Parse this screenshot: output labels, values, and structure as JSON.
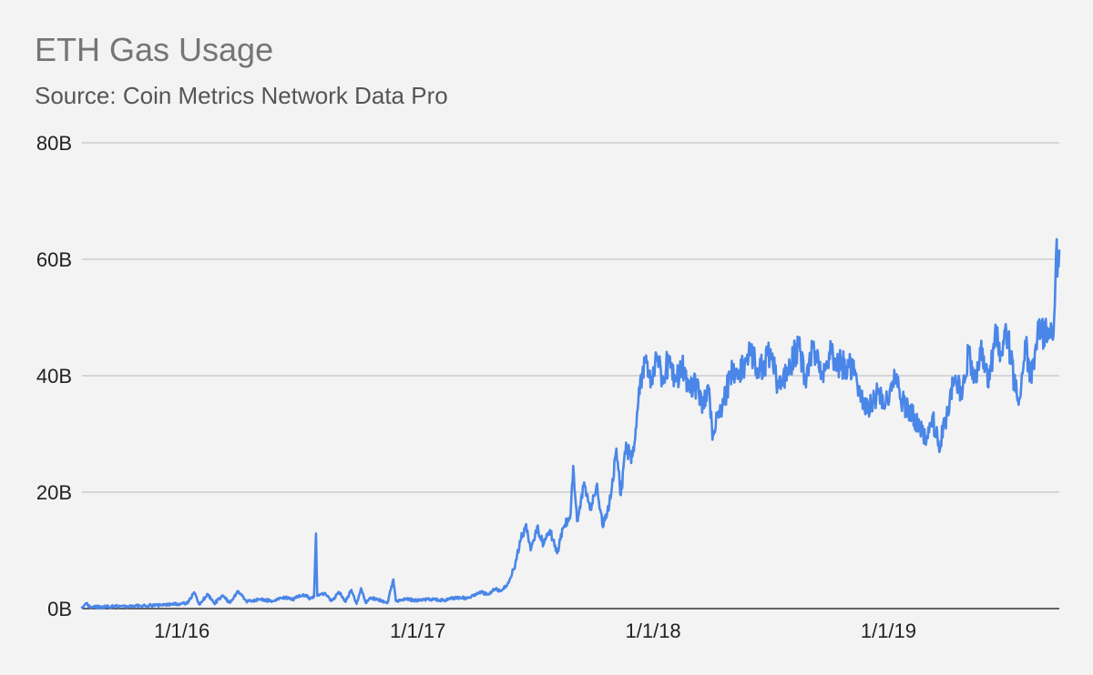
{
  "chart_data": {
    "type": "line",
    "title": "ETH Gas Usage",
    "subtitle": "Source: Coin Metrics Network Data Pro",
    "xlabel": "",
    "ylabel": "",
    "x_range": [
      "2015-07-30",
      "2019-09-23"
    ],
    "ylim": [
      0,
      80
    ],
    "y_unit": "billions of gas",
    "y_ticks": [
      {
        "value": 0,
        "label": "0B"
      },
      {
        "value": 20,
        "label": "20B"
      },
      {
        "value": 40,
        "label": "40B"
      },
      {
        "value": 60,
        "label": "60B"
      },
      {
        "value": 80,
        "label": "80B"
      }
    ],
    "x_ticks": [
      {
        "value": "2016-01-01",
        "label": "1/1/16"
      },
      {
        "value": "2017-01-01",
        "label": "1/1/17"
      },
      {
        "value": "2018-01-01",
        "label": "1/1/18"
      },
      {
        "value": "2019-01-01",
        "label": "1/1/19"
      }
    ],
    "grid": true,
    "legend": "none",
    "series": [
      {
        "color": "#4a86e8",
        "points": [
          [
            "2015-07-30",
            0.2
          ],
          [
            "2015-08-05",
            0.9
          ],
          [
            "2015-08-12",
            0.3
          ],
          [
            "2015-09-01",
            0.3
          ],
          [
            "2015-10-01",
            0.4
          ],
          [
            "2015-11-01",
            0.5
          ],
          [
            "2015-12-01",
            0.6
          ],
          [
            "2015-12-20",
            0.8
          ],
          [
            "2016-01-10",
            0.9
          ],
          [
            "2016-01-20",
            2.8
          ],
          [
            "2016-01-28",
            0.7
          ],
          [
            "2016-02-10",
            2.5
          ],
          [
            "2016-02-20",
            0.9
          ],
          [
            "2016-03-05",
            2.2
          ],
          [
            "2016-03-15",
            1.0
          ],
          [
            "2016-03-28",
            3.0
          ],
          [
            "2016-04-10",
            1.2
          ],
          [
            "2016-05-01",
            1.6
          ],
          [
            "2016-05-20",
            1.3
          ],
          [
            "2016-06-10",
            1.9
          ],
          [
            "2016-06-20",
            1.5
          ],
          [
            "2016-06-28",
            2.0
          ],
          [
            "2016-07-10",
            2.3
          ],
          [
            "2016-07-18",
            1.7
          ],
          [
            "2016-07-24",
            2.0
          ],
          [
            "2016-07-27",
            12.9
          ],
          [
            "2016-07-29",
            2.2
          ],
          [
            "2016-08-10",
            2.7
          ],
          [
            "2016-08-20",
            1.3
          ],
          [
            "2016-09-01",
            2.8
          ],
          [
            "2016-09-10",
            1.2
          ],
          [
            "2016-09-20",
            3.2
          ],
          [
            "2016-09-28",
            0.8
          ],
          [
            "2016-10-05",
            3.5
          ],
          [
            "2016-10-12",
            1.0
          ],
          [
            "2016-10-20",
            1.9
          ],
          [
            "2016-11-01",
            1.5
          ],
          [
            "2016-11-15",
            1.0
          ],
          [
            "2016-11-24",
            5.0
          ],
          [
            "2016-11-28",
            1.3
          ],
          [
            "2016-12-15",
            1.6
          ],
          [
            "2017-01-01",
            1.4
          ],
          [
            "2017-01-20",
            1.6
          ],
          [
            "2017-02-10",
            1.4
          ],
          [
            "2017-03-01",
            1.9
          ],
          [
            "2017-03-20",
            1.8
          ],
          [
            "2017-04-10",
            2.8
          ],
          [
            "2017-04-20",
            2.4
          ],
          [
            "2017-05-01",
            3.4
          ],
          [
            "2017-05-10",
            3.0
          ],
          [
            "2017-05-20",
            4.2
          ],
          [
            "2017-06-01",
            7.5
          ],
          [
            "2017-06-10",
            12.0
          ],
          [
            "2017-06-18",
            14.5
          ],
          [
            "2017-06-25",
            10.0
          ],
          [
            "2017-07-05",
            14.0
          ],
          [
            "2017-07-15",
            11.0
          ],
          [
            "2017-07-25",
            13.5
          ],
          [
            "2017-08-05",
            9.5
          ],
          [
            "2017-08-15",
            14.0
          ],
          [
            "2017-08-25",
            15.5
          ],
          [
            "2017-08-30",
            24.5
          ],
          [
            "2017-09-05",
            15.0
          ],
          [
            "2017-09-15",
            21.0
          ],
          [
            "2017-09-25",
            17.0
          ],
          [
            "2017-10-05",
            21.0
          ],
          [
            "2017-10-15",
            14.0
          ],
          [
            "2017-10-25",
            18.0
          ],
          [
            "2017-11-05",
            27.5
          ],
          [
            "2017-11-12",
            19.5
          ],
          [
            "2017-11-20",
            28.5
          ],
          [
            "2017-11-28",
            25.0
          ],
          [
            "2017-12-05",
            31.0
          ],
          [
            "2017-12-10",
            38.0
          ],
          [
            "2017-12-20",
            43.0
          ],
          [
            "2017-12-28",
            38.0
          ],
          [
            "2018-01-05",
            44.0
          ],
          [
            "2018-01-15",
            40.0
          ],
          [
            "2018-01-25",
            42.5
          ],
          [
            "2018-02-05",
            39.0
          ],
          [
            "2018-02-15",
            41.5
          ],
          [
            "2018-02-25",
            37.5
          ],
          [
            "2018-03-10",
            38.5
          ],
          [
            "2018-03-20",
            35.0
          ],
          [
            "2018-03-28",
            38.0
          ],
          [
            "2018-04-03",
            29.0
          ],
          [
            "2018-04-10",
            33.0
          ],
          [
            "2018-04-20",
            35.0
          ],
          [
            "2018-05-01",
            40.5
          ],
          [
            "2018-05-15",
            41.0
          ],
          [
            "2018-06-01",
            43.5
          ],
          [
            "2018-06-15",
            41.0
          ],
          [
            "2018-07-01",
            43.5
          ],
          [
            "2018-07-15",
            38.0
          ],
          [
            "2018-08-01",
            42.0
          ],
          [
            "2018-08-15",
            45.0
          ],
          [
            "2018-08-25",
            39.0
          ],
          [
            "2018-09-05",
            45.0
          ],
          [
            "2018-09-20",
            40.0
          ],
          [
            "2018-10-01",
            44.0
          ],
          [
            "2018-10-15",
            42.0
          ],
          [
            "2018-11-01",
            41.5
          ],
          [
            "2018-11-10",
            41.0
          ],
          [
            "2018-11-20",
            36.0
          ],
          [
            "2018-12-01",
            34.0
          ],
          [
            "2018-12-15",
            37.0
          ],
          [
            "2019-01-01",
            35.0
          ],
          [
            "2019-01-10",
            41.0
          ],
          [
            "2019-01-20",
            36.0
          ],
          [
            "2019-02-01",
            34.0
          ],
          [
            "2019-02-15",
            32.0
          ],
          [
            "2019-03-01",
            29.0
          ],
          [
            "2019-03-10",
            33.0
          ],
          [
            "2019-03-20",
            28.0
          ],
          [
            "2019-04-01",
            33.0
          ],
          [
            "2019-04-15",
            40.0
          ],
          [
            "2019-04-25",
            36.0
          ],
          [
            "2019-05-05",
            44.0
          ],
          [
            "2019-05-15",
            39.0
          ],
          [
            "2019-05-25",
            46.0
          ],
          [
            "2019-06-05",
            38.0
          ],
          [
            "2019-06-15",
            47.0
          ],
          [
            "2019-06-25",
            44.0
          ],
          [
            "2019-07-05",
            47.0
          ],
          [
            "2019-07-15",
            39.0
          ],
          [
            "2019-07-22",
            35.0
          ],
          [
            "2019-08-01",
            46.0
          ],
          [
            "2019-08-10",
            40.0
          ],
          [
            "2019-08-20",
            47.0
          ],
          [
            "2019-09-01",
            47.5
          ],
          [
            "2019-09-10",
            49.0
          ],
          [
            "2019-09-14",
            47.0
          ],
          [
            "2019-09-16",
            52.0
          ],
          [
            "2019-09-18",
            61.0
          ],
          [
            "2019-09-21",
            59.5
          ],
          [
            "2019-09-23",
            61.5
          ]
        ]
      }
    ]
  }
}
